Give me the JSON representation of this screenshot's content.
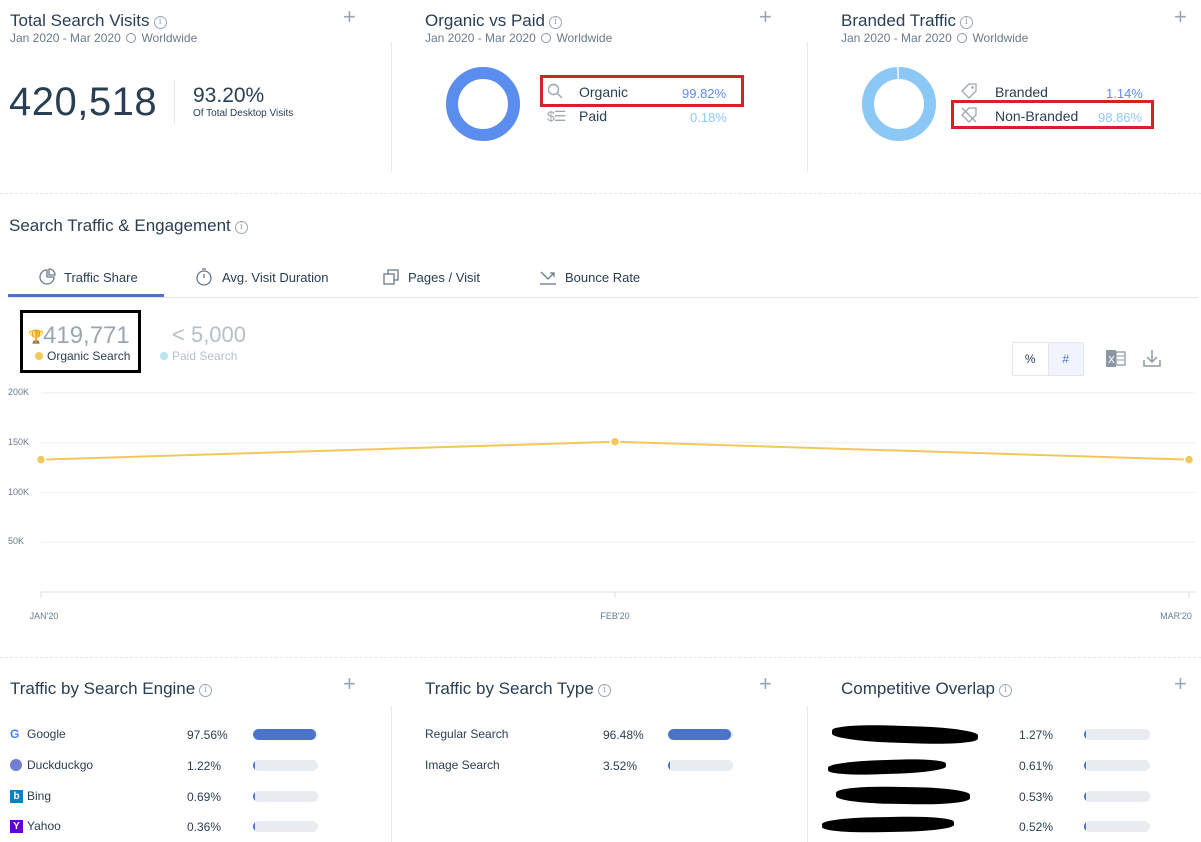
{
  "widgets": {
    "total": {
      "title": "Total Search Visits",
      "date_range": "Jan 2020 - Mar 2020",
      "region": "Worldwide",
      "visits": "420,518",
      "percent": "93.20%",
      "percent_label": "Of Total Desktop Visits"
    },
    "organic_paid": {
      "title": "Organic vs Paid",
      "date_range": "Jan 2020 - Mar 2020",
      "region": "Worldwide",
      "items": [
        {
          "label": "Organic",
          "value": "99.82%",
          "icon": "search-icon"
        },
        {
          "label": "Paid",
          "value": "0.18%",
          "icon": "dollar-list-icon"
        }
      ],
      "donut_fraction": 0.9982,
      "color": "#5b8def"
    },
    "branded": {
      "title": "Branded Traffic",
      "date_range": "Jan 2020 - Mar 2020",
      "region": "Worldwide",
      "items": [
        {
          "label": "Branded",
          "value": "1.14%",
          "icon": "tag-icon"
        },
        {
          "label": "Non-Branded",
          "value": "98.86%",
          "icon": "tag-off-icon"
        }
      ],
      "donut_fraction": 0.9886,
      "color": "#8cc8f5"
    }
  },
  "engagement": {
    "title": "Search Traffic & Engagement",
    "tabs": [
      {
        "label": "Traffic Share",
        "icon": "pie-icon"
      },
      {
        "label": "Avg. Visit Duration",
        "icon": "stopwatch-icon"
      },
      {
        "label": "Pages / Visit",
        "icon": "pages-icon"
      },
      {
        "label": "Bounce Rate",
        "icon": "bounce-icon"
      }
    ],
    "organic_value": "419,771",
    "organic_label": "Organic Search",
    "paid_value": "< 5,000",
    "paid_label": "Paid Search",
    "toggle": [
      "%",
      "#"
    ],
    "organic_color": "#f0c95a",
    "paid_color": "#b7e4ef"
  },
  "chart_data": {
    "type": "line",
    "categories": [
      "JAN'20",
      "FEB'20",
      "MAR'20"
    ],
    "series": [
      {
        "name": "Organic Search",
        "values": [
          133000,
          151000,
          133000
        ]
      }
    ],
    "yticks": [
      "200K",
      "150K",
      "100K",
      "50K"
    ],
    "ylim": [
      0,
      200000
    ],
    "grid": true
  },
  "engines": {
    "title": "Traffic by Search Engine",
    "items": [
      {
        "name": "Google",
        "value": "97.56%",
        "fraction": 0.9756,
        "icon": "google-icon"
      },
      {
        "name": "Duckduckgo",
        "value": "1.22%",
        "fraction": 0.0122,
        "icon": "duckduckgo-icon"
      },
      {
        "name": "Bing",
        "value": "0.69%",
        "fraction": 0.0069,
        "icon": "bing-icon"
      },
      {
        "name": "Yahoo",
        "value": "0.36%",
        "fraction": 0.0036,
        "icon": "yahoo-icon"
      }
    ]
  },
  "types": {
    "title": "Traffic by Search Type",
    "items": [
      {
        "name": "Regular Search",
        "value": "96.48%",
        "fraction": 0.9648
      },
      {
        "name": "Image Search",
        "value": "3.52%",
        "fraction": 0.0352
      }
    ]
  },
  "overlap": {
    "title": "Competitive Overlap",
    "items": [
      {
        "value": "1.27%",
        "fraction": 0.0127
      },
      {
        "value": "0.61%",
        "fraction": 0.0061
      },
      {
        "value": "0.53%",
        "fraction": 0.0053
      },
      {
        "value": "0.52%",
        "fraction": 0.0052
      }
    ]
  }
}
